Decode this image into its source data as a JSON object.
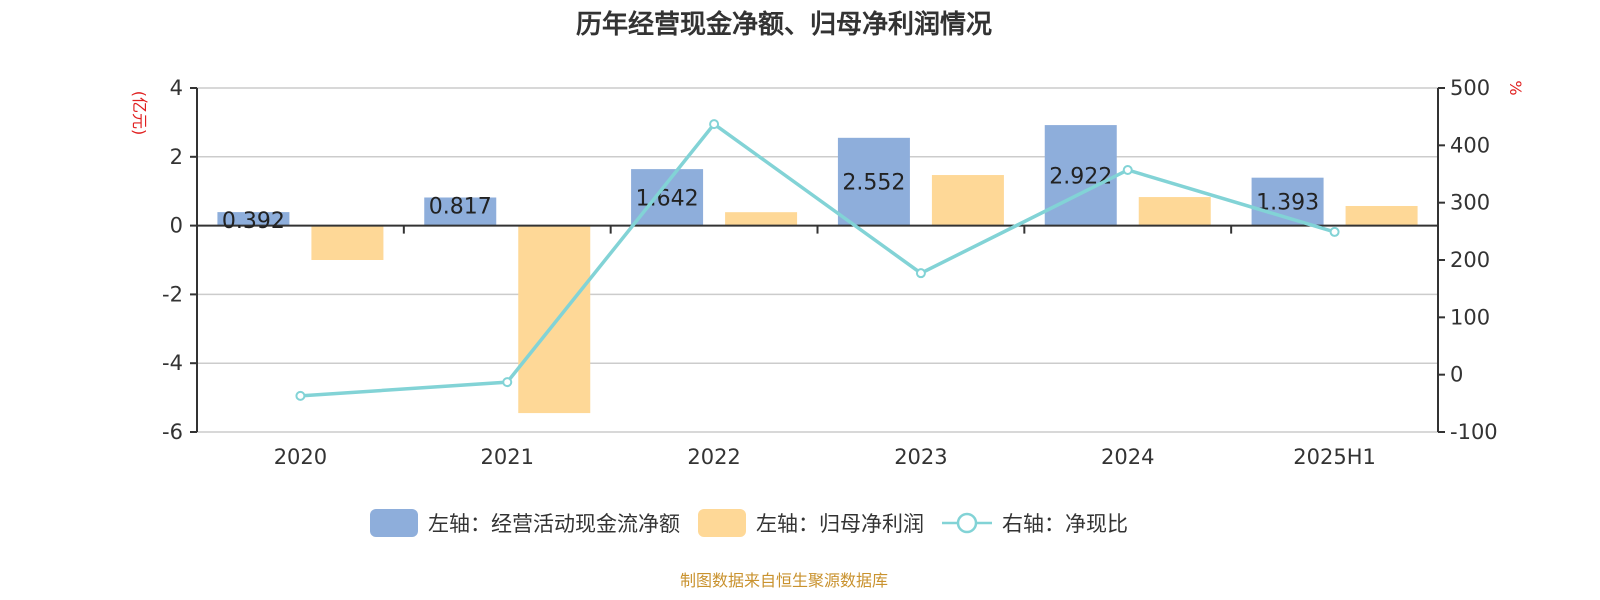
{
  "title": "历年经营现金净额、归母净利润情况",
  "left_axis_unit": "(亿元)",
  "right_axis_unit": "%",
  "legend": [
    {
      "label": "左轴：经营活动现金流净额",
      "color": "#8eaedb",
      "type": "bar"
    },
    {
      "label": "左轴：归母净利润",
      "color": "#fed897",
      "type": "bar"
    },
    {
      "label": "右轴：净现比",
      "color": "#82d3d6",
      "type": "line"
    }
  ],
  "footer": "制图数据来自恒生聚源数据库",
  "chart_data": {
    "type": "bar",
    "title": "历年经营现金净额、归母净利润情况",
    "categories": [
      "2020",
      "2021",
      "2022",
      "2023",
      "2024",
      "2025H1"
    ],
    "series": [
      {
        "name": "左轴：经营活动现金流净额",
        "axis": "left",
        "type": "bar",
        "color": "#8eaedb",
        "values": [
          0.392,
          0.817,
          1.642,
          2.552,
          2.922,
          1.393
        ],
        "labels": [
          "0.392",
          "0.817",
          "1.642",
          "2.552",
          "2.922",
          "1.393"
        ]
      },
      {
        "name": "左轴：归母净利润",
        "axis": "left",
        "type": "bar",
        "color": "#fed897",
        "values": [
          -1.0,
          -5.45,
          0.39,
          1.47,
          0.83,
          0.57
        ]
      },
      {
        "name": "右轴：净现比",
        "axis": "right",
        "type": "line",
        "color": "#82d3d6",
        "values": [
          -37,
          -13,
          437,
          177,
          357,
          249
        ]
      }
    ],
    "ylabel_left": "(亿元)",
    "ylabel_right": "%",
    "ylim_left": [
      -6,
      4
    ],
    "yticks_left": [
      4,
      2,
      0,
      -2,
      -4,
      -6
    ],
    "ylim_right": [
      -100,
      500
    ],
    "yticks_right": [
      500,
      400,
      300,
      200,
      100,
      0,
      -100
    ],
    "grid": true,
    "legend_position": "bottom"
  }
}
